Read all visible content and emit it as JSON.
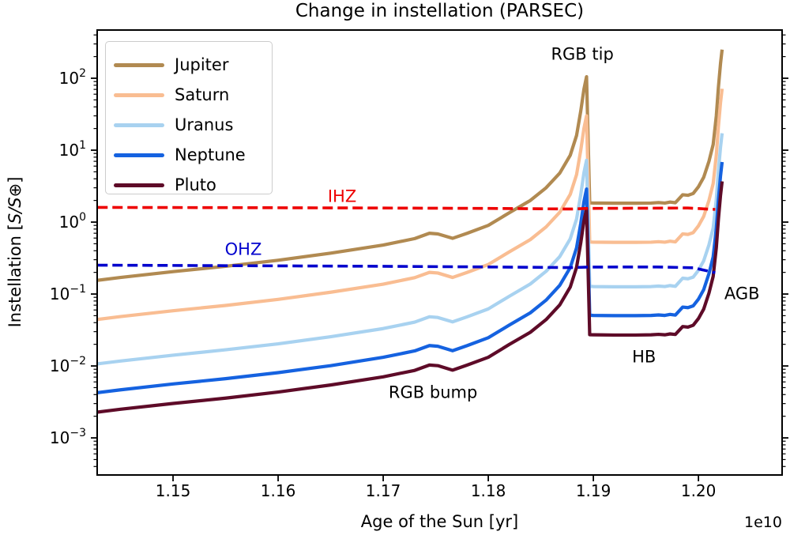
{
  "figure": {
    "background": "#ffffff"
  },
  "chart_data": {
    "type": "line",
    "title": "Change in instellation (PARSEC)",
    "xlabel": "Age of the Sun [yr]",
    "x_offset_label": "1e10",
    "ylabel_prefix": "Instellation [",
    "ylabel_italic": "S/S",
    "ylabel_suffix": "⊕]",
    "yscale": "log",
    "grid": false,
    "legend_position": "upper left",
    "xlim": [
      1.14278,
      1.20796
    ],
    "ylim": [
      0.000305,
      468
    ],
    "x_ticks": [
      {
        "value": 1.15,
        "label": "1.15"
      },
      {
        "value": 1.16,
        "label": "1.16"
      },
      {
        "value": 1.17,
        "label": "1.17"
      },
      {
        "value": 1.18,
        "label": "1.18"
      },
      {
        "value": 1.19,
        "label": "1.19"
      },
      {
        "value": 1.2,
        "label": "1.20"
      }
    ],
    "y_ticks": [
      {
        "value": 100,
        "base": "10",
        "exp": "2"
      },
      {
        "value": 10,
        "base": "10",
        "exp": "1"
      },
      {
        "value": 1,
        "base": "10",
        "exp": "0"
      },
      {
        "value": 0.1,
        "base": "10",
        "exp": "−1"
      },
      {
        "value": 0.01,
        "base": "10",
        "exp": "−2"
      },
      {
        "value": 0.001,
        "base": "10",
        "exp": "−3"
      }
    ],
    "x": [
      1.1428,
      1.145,
      1.15,
      1.155,
      1.16,
      1.165,
      1.17,
      1.173,
      1.1744,
      1.1752,
      1.1766,
      1.178,
      1.18,
      1.182,
      1.184,
      1.1855,
      1.1868,
      1.1878,
      1.1884,
      1.1888,
      1.1891,
      1.18935,
      1.18965,
      1.19,
      1.192,
      1.194,
      1.1955,
      1.1962,
      1.1968,
      1.1973,
      1.1978,
      1.1985,
      1.199,
      1.1995,
      1.2,
      1.2005,
      1.201,
      1.2014,
      1.2017,
      1.2019,
      1.2021,
      1.20225
    ],
    "series": [
      {
        "name": "Jupiter",
        "color": "#b18a51",
        "linewidth": 4.2,
        "legend": true,
        "values": [
          0.155,
          0.17,
          0.205,
          0.243,
          0.295,
          0.37,
          0.48,
          0.59,
          0.7,
          0.685,
          0.595,
          0.7,
          0.9,
          1.35,
          2.0,
          3.0,
          4.8,
          8.5,
          16,
          35,
          70,
          105,
          1.85,
          1.84,
          1.83,
          1.83,
          1.84,
          1.87,
          1.84,
          1.9,
          1.86,
          2.4,
          2.36,
          2.5,
          3.1,
          4.2,
          7.0,
          12,
          30,
          75,
          160,
          250
        ]
      },
      {
        "name": "Saturn",
        "color": "#f9bd92",
        "linewidth": 4.2,
        "legend": true,
        "values": [
          0.0443,
          0.0486,
          0.0586,
          0.0694,
          0.0843,
          0.106,
          0.137,
          0.169,
          0.2,
          0.196,
          0.17,
          0.2,
          0.257,
          0.386,
          0.571,
          0.857,
          1.37,
          2.43,
          4.57,
          10.0,
          20.0,
          30.0,
          0.529,
          0.526,
          0.523,
          0.523,
          0.526,
          0.534,
          0.526,
          0.543,
          0.531,
          0.686,
          0.674,
          0.714,
          0.886,
          1.2,
          2.0,
          3.43,
          8.57,
          21.4,
          45.7,
          71.4
        ]
      },
      {
        "name": "Uranus",
        "color": "#a8d2f0",
        "linewidth": 4.2,
        "legend": true,
        "values": [
          0.0107,
          0.0117,
          0.0141,
          0.0168,
          0.0203,
          0.0255,
          0.0331,
          0.0407,
          0.0483,
          0.0472,
          0.041,
          0.0483,
          0.0621,
          0.0931,
          0.138,
          0.207,
          0.331,
          0.586,
          1.1,
          2.41,
          4.83,
          7.24,
          0.128,
          0.127,
          0.126,
          0.126,
          0.127,
          0.129,
          0.127,
          0.131,
          0.128,
          0.166,
          0.163,
          0.172,
          0.214,
          0.29,
          0.483,
          0.828,
          2.07,
          5.17,
          11.0,
          17.2
        ]
      },
      {
        "name": "Neptune",
        "color": "#1562e0",
        "linewidth": 4.2,
        "legend": true,
        "values": [
          0.00425,
          0.00466,
          0.00562,
          0.00666,
          0.00808,
          0.0101,
          0.0132,
          0.0162,
          0.0192,
          0.0188,
          0.0163,
          0.0192,
          0.0247,
          0.037,
          0.0548,
          0.0822,
          0.132,
          0.233,
          0.438,
          0.959,
          1.92,
          2.88,
          0.0507,
          0.0504,
          0.0501,
          0.0501,
          0.0504,
          0.0512,
          0.0504,
          0.0521,
          0.051,
          0.0658,
          0.0647,
          0.0685,
          0.0849,
          0.115,
          0.192,
          0.329,
          0.822,
          2.05,
          4.38,
          6.85
        ]
      },
      {
        "name": "Pluto",
        "color": "#5e0b28",
        "linewidth": 4.2,
        "legend": true,
        "values": [
          0.00228,
          0.0025,
          0.00301,
          0.00357,
          0.00434,
          0.00544,
          0.00706,
          0.00868,
          0.0103,
          0.0101,
          0.00875,
          0.0103,
          0.0132,
          0.0199,
          0.0294,
          0.0441,
          0.0706,
          0.125,
          0.235,
          0.515,
          1.03,
          1.54,
          0.0272,
          0.0271,
          0.0269,
          0.0269,
          0.0271,
          0.0275,
          0.0271,
          0.0279,
          0.0274,
          0.0353,
          0.0347,
          0.0368,
          0.0456,
          0.0618,
          0.103,
          0.176,
          0.441,
          1.1,
          2.35,
          3.68
        ]
      }
    ],
    "hz_lines": [
      {
        "name": "IHZ",
        "color": "#ee0000",
        "linewidth": 3.6,
        "dash": [
          13,
          6
        ],
        "x": [
          1.1428,
          1.155,
          1.17,
          1.18,
          1.188,
          1.1895,
          1.194,
          1.199,
          1.2016
        ],
        "values": [
          1.6,
          1.59,
          1.57,
          1.55,
          1.52,
          1.55,
          1.56,
          1.57,
          1.5
        ]
      },
      {
        "name": "OHZ",
        "color": "#0202cd",
        "linewidth": 3.6,
        "dash": [
          13,
          6
        ],
        "x": [
          1.1428,
          1.155,
          1.17,
          1.18,
          1.188,
          1.1895,
          1.196,
          1.1995,
          1.2005,
          1.2016
        ],
        "values": [
          0.252,
          0.248,
          0.243,
          0.238,
          0.233,
          0.237,
          0.238,
          0.232,
          0.215,
          0.198
        ]
      }
    ],
    "annotations": [
      {
        "id": "rgb-tip",
        "text": "RGB tip",
        "x": 1.18895,
        "y": 214,
        "color": "#000000"
      },
      {
        "id": "ihz",
        "text": "IHZ",
        "x": 1.16609,
        "y": 2.25,
        "color": "#ee0000"
      },
      {
        "id": "ohz",
        "text": "OHZ",
        "x": 1.15669,
        "y": 0.412,
        "color": "#0202cd"
      },
      {
        "id": "rgb-bump",
        "text": "RGB bump",
        "x": 1.17474,
        "y": 0.00423,
        "color": "#000000"
      },
      {
        "id": "hb",
        "text": "HB",
        "x": 1.19482,
        "y": 0.0132,
        "color": "#000000"
      },
      {
        "id": "agb",
        "text": "AGB",
        "x": 1.20414,
        "y": 0.1,
        "color": "#000000"
      }
    ]
  }
}
